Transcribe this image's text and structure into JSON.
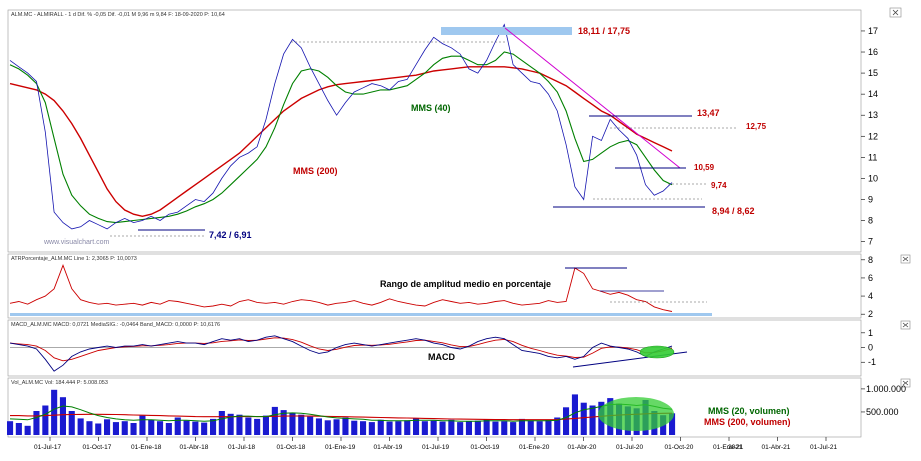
{
  "chart_data": {
    "type": "line",
    "instrument_header": "ALM.MC - ALMIRALL - 1 d Dif. % -0,05 Dif. -0,01 M 9,96 m 9,84 F: 18-09-2020 P: 10,64",
    "watermark": "www.visualchart.com",
    "x_ticks": [
      "01-Jul-17",
      "01-Oct-17",
      "01-Ene-18",
      "01-Abr-18",
      "01-Jul-18",
      "01-Oct-18",
      "01-Ene-19",
      "01-Abr-19",
      "01-Jul-19",
      "01-Oct-19",
      "01-Ene-20",
      "01-Abr-20",
      "01-Jul-20",
      "01-Oct-20",
      "01-Ene-21",
      "01-Abr-21",
      "01-Jul-21"
    ],
    "x_year_label": "2021",
    "price_panel": {
      "y_ticks": [
        "7",
        "8",
        "9",
        "10",
        "11",
        "12",
        "13",
        "14",
        "15",
        "16",
        "17"
      ],
      "ylim": [
        6.6,
        17.9
      ],
      "close": [
        15.6,
        15.3,
        15.0,
        14.6,
        12.2,
        8.4,
        7.9,
        7.6,
        7.7,
        8.0,
        7.8,
        7.6,
        7.9,
        8.1,
        7.9,
        8.0,
        8.2,
        8.0,
        8.3,
        8.4,
        8.7,
        9.0,
        8.9,
        9.3,
        10.0,
        10.6,
        11.0,
        11.2,
        11.5,
        12.8,
        14.5,
        15.9,
        16.6,
        16.2,
        15.3,
        14.5,
        13.7,
        13.0,
        13.6,
        14.1,
        14.3,
        14.5,
        14.4,
        14.2,
        14.6,
        14.7,
        15.4,
        16.1,
        16.7,
        16.4,
        16.2,
        15.9,
        15.2,
        15.0,
        15.6,
        16.5,
        17.3,
        15.4,
        15.0,
        14.6,
        14.5,
        14.0,
        13.2,
        11.6,
        9.6,
        9.0,
        12.0,
        11.8,
        12.8,
        12.3,
        11.9,
        11.1,
        9.7,
        9.2,
        9.4,
        9.8
      ],
      "mms40": [
        15.4,
        15.2,
        14.9,
        14.5,
        13.6,
        11.9,
        10.2,
        9.2,
        8.7,
        8.3,
        8.1,
        7.95,
        7.9,
        7.95,
        8.0,
        8.05,
        8.1,
        8.15,
        8.2,
        8.3,
        8.45,
        8.65,
        8.8,
        9.0,
        9.3,
        9.7,
        10.1,
        10.5,
        10.9,
        11.5,
        12.4,
        13.5,
        14.5,
        15.1,
        15.2,
        15.1,
        14.8,
        14.4,
        14.1,
        14.0,
        14.0,
        14.1,
        14.2,
        14.2,
        14.3,
        14.4,
        14.7,
        15.0,
        15.4,
        15.7,
        15.8,
        15.8,
        15.6,
        15.4,
        15.4,
        15.6,
        16.0,
        15.9,
        15.6,
        15.3,
        15.0,
        14.6,
        14.1,
        13.2,
        11.9,
        10.8,
        10.9,
        11.2,
        11.5,
        11.7,
        11.8,
        11.6,
        11.0,
        10.4,
        9.9,
        9.7
      ],
      "mms200": [
        14.5,
        14.4,
        14.3,
        14.2,
        14.0,
        13.7,
        13.2,
        12.6,
        11.9,
        11.1,
        10.3,
        9.5,
        8.9,
        8.5,
        8.3,
        8.2,
        8.3,
        8.5,
        8.8,
        9.1,
        9.4,
        9.7,
        10.0,
        10.3,
        10.6,
        10.9,
        11.2,
        11.6,
        12.0,
        12.4,
        12.8,
        13.2,
        13.5,
        13.8,
        14.0,
        14.2,
        14.35,
        14.45,
        14.5,
        14.55,
        14.6,
        14.65,
        14.7,
        14.75,
        14.8,
        14.85,
        14.9,
        15.0,
        15.1,
        15.15,
        15.2,
        15.25,
        15.3,
        15.3,
        15.3,
        15.3,
        15.3,
        15.25,
        15.2,
        15.1,
        15.0,
        14.8,
        14.6,
        14.4,
        14.1,
        13.8,
        13.5,
        13.2,
        13.0,
        12.7,
        12.4,
        12.1,
        11.9,
        11.7,
        11.5,
        11.3
      ],
      "annotations": [
        {
          "text": "18,11 / 17,75",
          "color": "#c00000"
        },
        {
          "text": "13,47",
          "color": "#c00000"
        },
        {
          "text": "12,75",
          "color": "#c00000"
        },
        {
          "text": "10,59",
          "color": "#c00000"
        },
        {
          "text": "9,74",
          "color": "#c00000"
        },
        {
          "text": "8,94 / 8,62",
          "color": "#c00000"
        },
        {
          "text": "7,42 / 6,91",
          "color": "#000080"
        },
        {
          "text": "MMS (200)",
          "color": "#c00000"
        },
        {
          "text": "MMS (40)",
          "color": "#006600"
        }
      ]
    },
    "atr_panel": {
      "header": "ATRPorcentaje_ALM.MC Line 1: 2,3065 P: 10,0073",
      "y_ticks": [
        "2",
        "4",
        "6",
        "8"
      ],
      "ylim": [
        1.8,
        8.2
      ],
      "label": "Rango de amplitud medio en porcentaje",
      "values": [
        3.2,
        3.4,
        3.1,
        3.6,
        4.0,
        4.8,
        7.4,
        4.8,
        3.6,
        3.3,
        3.1,
        3.2,
        3.0,
        3.1,
        3.2,
        3.0,
        3.3,
        3.1,
        3.5,
        3.4,
        3.2,
        3.0,
        2.8,
        2.9,
        3.1,
        2.9,
        3.4,
        3.6,
        3.3,
        3.2,
        3.3,
        3.1,
        3.4,
        3.6,
        3.5,
        3.3,
        3.0,
        3.2,
        3.3,
        3.5,
        3.2,
        3.0,
        3.3,
        3.7,
        3.4,
        3.2,
        3.0,
        2.9,
        3.3,
        3.6,
        3.4,
        3.2,
        3.3,
        3.1,
        3.2,
        3.4,
        3.5,
        3.2,
        3.0,
        3.1,
        3.2,
        3.5,
        3.3,
        3.4,
        7.1,
        6.5,
        4.8,
        4.5,
        4.2,
        4.4,
        4.1,
        3.6,
        3.4,
        2.8,
        2.5,
        2.3
      ]
    },
    "macd_panel": {
      "header": "MACD_ALM.MC MACD: 0,0721 MediaSIG.: -0,0464 Band_MACD: 0,0000 P: 10,6176",
      "y_ticks": [
        "1",
        "0",
        "-1"
      ],
      "ylim": [
        -1.8,
        1.6
      ],
      "label": "MACD",
      "macd": [
        0.3,
        0.2,
        0.1,
        -0.1,
        -0.8,
        -1.6,
        -1.2,
        -0.6,
        -0.3,
        -0.1,
        0.0,
        0.1,
        0.0,
        0.1,
        0.1,
        0.2,
        0.1,
        0.2,
        0.3,
        0.4,
        0.3,
        0.3,
        0.2,
        0.4,
        0.6,
        0.5,
        0.6,
        0.4,
        0.5,
        0.7,
        0.8,
        0.6,
        0.4,
        0.1,
        -0.2,
        -0.4,
        -0.3,
        0.0,
        0.2,
        0.3,
        0.2,
        0.1,
        0.2,
        0.3,
        0.4,
        0.5,
        0.6,
        0.5,
        0.3,
        0.2,
        0.0,
        -0.1,
        0.1,
        0.4,
        0.6,
        0.7,
        0.6,
        0.2,
        -0.2,
        -0.3,
        -0.4,
        -0.6,
        -0.7,
        -0.6,
        -0.8,
        -0.6,
        0.0,
        0.3,
        0.1,
        0.0,
        -0.1,
        -0.3,
        -0.6,
        -0.3,
        -0.1,
        0.1
      ],
      "signal": [
        0.3,
        0.25,
        0.2,
        0.1,
        -0.2,
        -0.7,
        -0.9,
        -0.8,
        -0.6,
        -0.4,
        -0.2,
        -0.1,
        0.0,
        0.05,
        0.08,
        0.12,
        0.12,
        0.15,
        0.2,
        0.28,
        0.3,
        0.3,
        0.28,
        0.32,
        0.42,
        0.46,
        0.52,
        0.48,
        0.49,
        0.58,
        0.66,
        0.64,
        0.54,
        0.36,
        0.12,
        -0.1,
        -0.2,
        -0.12,
        0.02,
        0.14,
        0.17,
        0.15,
        0.17,
        0.22,
        0.3,
        0.38,
        0.48,
        0.5,
        0.42,
        0.32,
        0.18,
        0.06,
        0.07,
        0.2,
        0.36,
        0.5,
        0.55,
        0.4,
        0.15,
        -0.05,
        -0.2,
        -0.38,
        -0.52,
        -0.58,
        -0.68,
        -0.66,
        -0.38,
        -0.05,
        0.04,
        0.03,
        -0.03,
        -0.15,
        -0.36,
        -0.34,
        -0.22,
        -0.05
      ]
    },
    "volume_panel": {
      "header": "Vol_ALM.MC Vol: 184.444 P: 5.008.053",
      "y_ticks": [
        "1.000.000",
        "500.000"
      ],
      "ylim": [
        0,
        1150000
      ],
      "labels": [
        {
          "text": "MMS (20, volumen)",
          "color": "#006600"
        },
        {
          "text": "MMS (200, volumen)",
          "color": "#c00000"
        }
      ],
      "volume": [
        300000,
        260000,
        200000,
        520000,
        640000,
        980000,
        820000,
        520000,
        360000,
        300000,
        250000,
        340000,
        280000,
        300000,
        260000,
        420000,
        330000,
        300000,
        260000,
        380000,
        310000,
        290000,
        270000,
        350000,
        520000,
        460000,
        440000,
        380000,
        350000,
        420000,
        610000,
        540000,
        480000,
        440000,
        400000,
        360000,
        320000,
        340000,
        380000,
        310000,
        300000,
        280000,
        330000,
        290000,
        300000,
        320000,
        360000,
        300000,
        310000,
        290000,
        330000,
        280000,
        300000,
        310000,
        340000,
        290000,
        300000,
        280000,
        350000,
        320000,
        300000,
        330000,
        380000,
        600000,
        880000,
        700000,
        640000,
        720000,
        800000,
        680000,
        620000,
        580000,
        760000,
        520000,
        430000,
        470000
      ],
      "mms20": [
        350000,
        340000,
        330000,
        380000,
        450000,
        560000,
        630000,
        610000,
        550000,
        480000,
        420000,
        380000,
        350000,
        330000,
        320000,
        330000,
        330000,
        320000,
        310000,
        320000,
        320000,
        310000,
        300000,
        310000,
        350000,
        390000,
        410000,
        410000,
        400000,
        400000,
        440000,
        470000,
        480000,
        470000,
        450000,
        420000,
        390000,
        370000,
        360000,
        350000,
        340000,
        320000,
        320000,
        310000,
        310000,
        310000,
        320000,
        320000,
        320000,
        310000,
        310000,
        300000,
        300000,
        300000,
        310000,
        310000,
        310000,
        300000,
        310000,
        310000,
        310000,
        310000,
        320000,
        380000,
        480000,
        550000,
        580000,
        620000,
        660000,
        670000,
        660000,
        640000,
        660000,
        620000,
        580000,
        560000
      ],
      "mms200": [
        420000,
        420000,
        415000,
        415000,
        420000,
        430000,
        440000,
        445000,
        448000,
        450000,
        450000,
        448000,
        445000,
        440000,
        435000,
        430000,
        425000,
        420000,
        415000,
        410000,
        405000,
        400000,
        398000,
        396000,
        396000,
        398000,
        400000,
        400000,
        400000,
        402000,
        406000,
        410000,
        412000,
        412000,
        410000,
        408000,
        404000,
        400000,
        396000,
        392000,
        388000,
        384000,
        380000,
        376000,
        372000,
        368000,
        364000,
        360000,
        356000,
        352000,
        348000,
        345000,
        342000,
        340000,
        338000,
        336000,
        334000,
        333000,
        332000,
        332000,
        332000,
        333000,
        336000,
        345000,
        360000,
        375000,
        390000,
        405000,
        420000,
        432000,
        442000,
        450000,
        460000,
        466000,
        470000,
        474000
      ]
    }
  }
}
